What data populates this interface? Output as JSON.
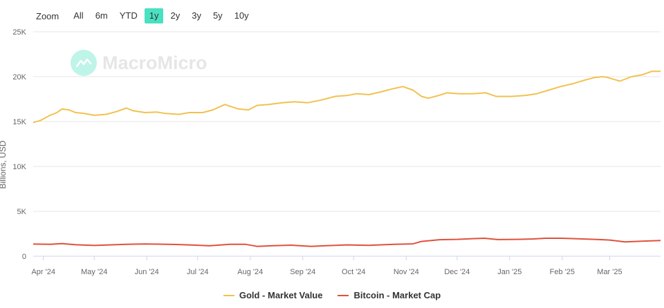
{
  "zoom": {
    "label": "Zoom",
    "buttons": [
      "All",
      "6m",
      "YTD",
      "1y",
      "2y",
      "3y",
      "5y",
      "10y"
    ],
    "active": "1y"
  },
  "watermark": {
    "text": "MacroMicro"
  },
  "chart_data": {
    "type": "line",
    "ylabel": "Billions, USD",
    "ylim": [
      0,
      25000
    ],
    "yticks": [
      0,
      5000,
      10000,
      15000,
      20000,
      25000
    ],
    "ytick_labels": [
      "0",
      "5K",
      "10K",
      "15K",
      "20K",
      "25K"
    ],
    "xlim": [
      "2024-03-26",
      "2025-03-31"
    ],
    "xticks": [
      "2024-04-01",
      "2024-05-01",
      "2024-06-01",
      "2024-07-01",
      "2024-08-01",
      "2024-09-01",
      "2024-10-01",
      "2024-11-01",
      "2024-12-01",
      "2025-01-01",
      "2025-02-01",
      "2025-03-01"
    ],
    "xtick_labels": [
      "Apr '24",
      "May '24",
      "Jun '24",
      "Jul '24",
      "Aug '24",
      "Sep '24",
      "Oct '24",
      "Nov '24",
      "Dec '24",
      "Jan '25",
      "Feb '25",
      "Mar '25"
    ],
    "grid": true,
    "legend_position": "bottom",
    "series": [
      {
        "name": "Gold - Market Value",
        "color": "#f2c14e",
        "x": [
          "2024-03-26",
          "2024-03-30",
          "2024-04-05",
          "2024-04-09",
          "2024-04-12",
          "2024-04-16",
          "2024-04-20",
          "2024-04-25",
          "2024-05-01",
          "2024-05-08",
          "2024-05-14",
          "2024-05-20",
          "2024-05-24",
          "2024-05-31",
          "2024-06-07",
          "2024-06-12",
          "2024-06-20",
          "2024-06-26",
          "2024-07-04",
          "2024-07-10",
          "2024-07-17",
          "2024-07-25",
          "2024-07-31",
          "2024-08-05",
          "2024-08-12",
          "2024-08-20",
          "2024-08-27",
          "2024-09-04",
          "2024-09-12",
          "2024-09-20",
          "2024-09-27",
          "2024-10-03",
          "2024-10-10",
          "2024-10-17",
          "2024-10-23",
          "2024-10-30",
          "2024-11-05",
          "2024-11-10",
          "2024-11-14",
          "2024-11-20",
          "2024-11-25",
          "2024-12-02",
          "2024-12-10",
          "2024-12-18",
          "2024-12-24",
          "2025-01-02",
          "2025-01-10",
          "2025-01-17",
          "2025-01-24",
          "2025-01-31",
          "2025-02-07",
          "2025-02-14",
          "2025-02-20",
          "2025-02-25",
          "2025-02-28",
          "2025-03-07",
          "2025-03-14",
          "2025-03-20",
          "2025-03-26",
          "2025-03-31"
        ],
        "values": [
          14900,
          15100,
          15700,
          16000,
          16400,
          16300,
          16000,
          15900,
          15700,
          15800,
          16100,
          16500,
          16200,
          16000,
          16050,
          15900,
          15800,
          16000,
          16000,
          16300,
          16900,
          16400,
          16300,
          16800,
          16900,
          17100,
          17200,
          17100,
          17400,
          17800,
          17900,
          18100,
          18000,
          18300,
          18600,
          18900,
          18500,
          17800,
          17600,
          17900,
          18200,
          18100,
          18100,
          18200,
          17800,
          17800,
          17900,
          18100,
          18500,
          18900,
          19200,
          19600,
          19900,
          20000,
          19900,
          19500,
          20000,
          20200,
          20600,
          20600
        ]
      },
      {
        "name": "Bitcoin - Market Cap",
        "color": "#e0503a",
        "x": [
          "2024-03-26",
          "2024-04-05",
          "2024-04-12",
          "2024-04-20",
          "2024-05-01",
          "2024-05-10",
          "2024-05-20",
          "2024-05-31",
          "2024-06-10",
          "2024-06-20",
          "2024-07-01",
          "2024-07-08",
          "2024-07-20",
          "2024-07-29",
          "2024-08-05",
          "2024-08-15",
          "2024-08-25",
          "2024-09-06",
          "2024-09-15",
          "2024-09-27",
          "2024-10-10",
          "2024-10-25",
          "2024-11-05",
          "2024-11-10",
          "2024-11-20",
          "2024-12-01",
          "2024-12-10",
          "2024-12-17",
          "2024-12-25",
          "2025-01-05",
          "2025-01-15",
          "2025-01-22",
          "2025-02-01",
          "2025-02-10",
          "2025-02-20",
          "2025-02-25",
          "2025-03-01",
          "2025-03-10",
          "2025-03-20",
          "2025-03-31"
        ],
        "values": [
          1350,
          1330,
          1400,
          1280,
          1200,
          1260,
          1330,
          1360,
          1340,
          1300,
          1220,
          1160,
          1320,
          1330,
          1100,
          1170,
          1230,
          1100,
          1170,
          1260,
          1210,
          1330,
          1380,
          1650,
          1830,
          1880,
          1950,
          2000,
          1850,
          1880,
          1920,
          2000,
          2000,
          1940,
          1880,
          1840,
          1800,
          1600,
          1680,
          1750
        ]
      }
    ]
  }
}
